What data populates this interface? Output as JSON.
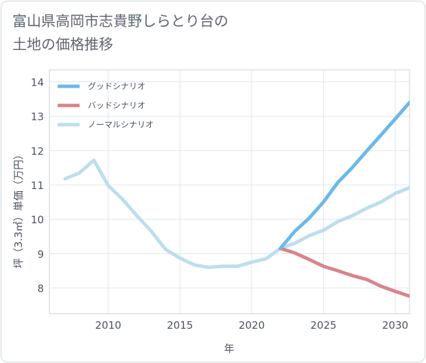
{
  "title": "富山県高岡市志貴野しらとり台の\n土地の価格推移",
  "chart_data": {
    "type": "line",
    "xlabel": "年",
    "ylabel": "坪（3.3㎡）単価（万円）",
    "xlim": [
      2005.9,
      2031
    ],
    "ylim": [
      7.25,
      14.35
    ],
    "xticks": [
      2010,
      2015,
      2020,
      2025,
      2030
    ],
    "yticks": [
      8,
      9,
      10,
      11,
      12,
      13,
      14
    ],
    "grid": true,
    "legend_position": "top-left",
    "series": [
      {
        "name": "グッドシナリオ",
        "color": "#6cb8ea",
        "x": [
          2022,
          2023,
          2024,
          2025,
          2026,
          2027,
          2028,
          2029,
          2030,
          2031
        ],
        "y": [
          9.15,
          9.65,
          10.03,
          10.5,
          11.07,
          11.5,
          11.98,
          12.45,
          12.92,
          13.4
        ]
      },
      {
        "name": "バッドシナリオ",
        "color": "#d9848c",
        "x": [
          2022,
          2023,
          2024,
          2025,
          2026,
          2027,
          2028,
          2029,
          2030,
          2031
        ],
        "y": [
          9.15,
          9.02,
          8.83,
          8.63,
          8.5,
          8.36,
          8.25,
          8.05,
          7.9,
          7.76
        ]
      },
      {
        "name": "ノーマルシナリオ",
        "color": "#bcdeed",
        "x": [
          2007,
          2008,
          2009,
          2010,
          2011,
          2012,
          2013,
          2014,
          2015,
          2016,
          2017,
          2018,
          2019,
          2020,
          2021,
          2022,
          2023,
          2024,
          2025,
          2026,
          2027,
          2028,
          2029,
          2030,
          2031
        ],
        "y": [
          11.18,
          11.35,
          11.72,
          10.98,
          10.58,
          10.1,
          9.65,
          9.12,
          8.87,
          8.67,
          8.6,
          8.63,
          8.63,
          8.75,
          8.85,
          9.15,
          9.3,
          9.52,
          9.68,
          9.93,
          10.1,
          10.32,
          10.5,
          10.75,
          10.92
        ]
      }
    ]
  }
}
